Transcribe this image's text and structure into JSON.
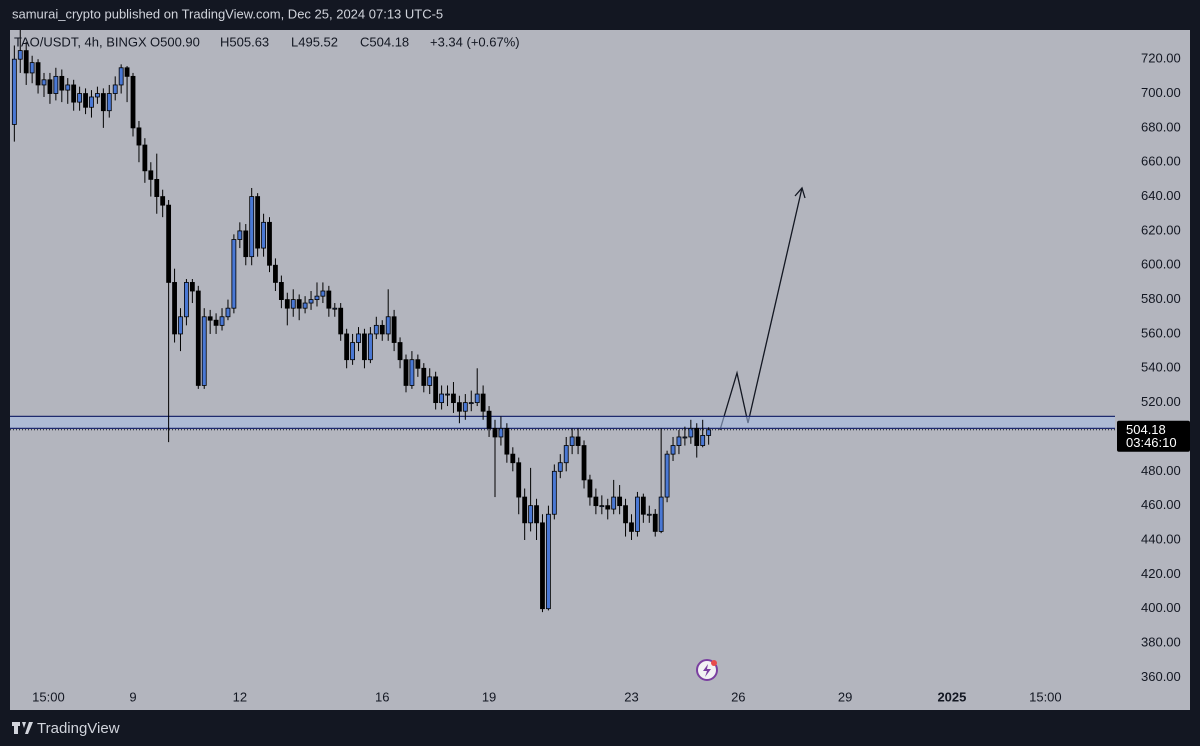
{
  "header": {
    "text": "samurai_crypto published on TradingView.com, Dec 25, 2024 07:13 UTC-5"
  },
  "footer": {
    "brand": "TradingView"
  },
  "chart_data": {
    "type": "candlestick",
    "legend": {
      "symbol": "TAO/USDT, 4h, BINGX",
      "open": "O500.90",
      "high": "H505.63",
      "low": "L495.52",
      "close": "C504.18",
      "change": "+3.34 (+0.67%)"
    },
    "countdown": "03:46:10",
    "up_color": "#4a78d4",
    "down_color": "#000000",
    "zone": [
      505,
      512
    ],
    "xlim": [
      5.545,
      36.58
    ],
    "xticks": [
      {
        "value": 6.625,
        "label": "15:00"
      },
      9,
      12,
      16,
      19,
      23,
      26,
      29,
      {
        "value": 32,
        "label": "2025"
      },
      {
        "value": 34.625,
        "label": "15:00"
      }
    ],
    "ylim": [
      341,
      737
    ],
    "yticks": [
      {
        "value": 360,
        "label": "360.00"
      },
      {
        "value": 380,
        "label": "380.00"
      },
      {
        "value": 400,
        "label": "400.00"
      },
      {
        "value": 420,
        "label": "420.00"
      },
      {
        "value": 440,
        "label": "440.00"
      },
      {
        "value": 460,
        "label": "460.00"
      },
      {
        "value": 480,
        "label": "480.00"
      },
      {
        "value": 500,
        "label": "500.00"
      },
      {
        "value": 520,
        "label": "520.00"
      },
      {
        "value": 540,
        "label": "540.00"
      },
      {
        "value": 560,
        "label": "560.00"
      },
      {
        "value": 580,
        "label": "580.00"
      },
      {
        "value": 600,
        "label": "600.00"
      },
      {
        "value": 620,
        "label": "620.00"
      },
      {
        "value": 640,
        "label": "640.00"
      },
      {
        "value": 660,
        "label": "660.00"
      },
      {
        "value": 680,
        "label": "680.00"
      },
      {
        "value": 700,
        "label": "700.00"
      },
      {
        "value": 720,
        "label": "720.00"
      }
    ],
    "x": [
      5.667,
      5.833,
      6,
      6.167,
      6.333,
      6.5,
      6.667,
      6.833,
      7,
      7.167,
      7.333,
      7.5,
      7.667,
      7.833,
      8,
      8.167,
      8.333,
      8.5,
      8.667,
      8.833,
      9,
      9.167,
      9.333,
      9.5,
      9.667,
      9.833,
      10,
      10.167,
      10.333,
      10.5,
      10.667,
      10.833,
      11,
      11.167,
      11.333,
      11.5,
      11.667,
      11.833,
      12,
      12.167,
      12.333,
      12.5,
      12.667,
      12.833,
      13,
      13.167,
      13.333,
      13.5,
      13.667,
      13.833,
      14,
      14.167,
      14.333,
      14.5,
      14.667,
      14.833,
      15,
      15.167,
      15.333,
      15.5,
      15.667,
      15.833,
      16,
      16.167,
      16.333,
      16.5,
      16.667,
      16.833,
      17,
      17.167,
      17.333,
      17.5,
      17.667,
      17.833,
      18,
      18.167,
      18.333,
      18.5,
      18.667,
      18.833,
      19,
      19.167,
      19.333,
      19.5,
      19.667,
      19.833,
      20,
      20.167,
      20.333,
      20.5,
      20.667,
      20.833,
      21,
      21.167,
      21.333,
      21.5,
      21.667,
      21.833,
      22,
      22.167,
      22.333,
      22.5,
      22.667,
      22.833,
      23,
      23.167,
      23.333,
      23.5,
      23.667,
      23.833,
      24,
      24.167,
      24.333,
      24.5,
      24.667,
      24.833,
      25,
      25.167
    ],
    "open": [
      682,
      720,
      725,
      712,
      718,
      705,
      708,
      700,
      710,
      702,
      705,
      695,
      700,
      692,
      698,
      700,
      690,
      700,
      705,
      715,
      710,
      680,
      670,
      655,
      650,
      640,
      635,
      590,
      560,
      570,
      590,
      585,
      530,
      570,
      568,
      565,
      570,
      575,
      615,
      620,
      605,
      640,
      610,
      625,
      600,
      590,
      580,
      575,
      580,
      575,
      578,
      580,
      582,
      585,
      575,
      575,
      560,
      545,
      555,
      560,
      545,
      560,
      565,
      560,
      570,
      555,
      545,
      530,
      545,
      540,
      530,
      535,
      520,
      525,
      525,
      520,
      515,
      520,
      520,
      525,
      515,
      505,
      500,
      505,
      490,
      485,
      465,
      450,
      460,
      450,
      400,
      455,
      480,
      485,
      495,
      500,
      495,
      475,
      465,
      460,
      460,
      458,
      465,
      460,
      450,
      445,
      465,
      455,
      455,
      445,
      465,
      490,
      495,
      500,
      500,
      505,
      495,
      500.9
    ],
    "high": [
      728,
      737,
      730,
      722,
      720,
      712,
      712,
      715,
      714,
      709,
      708,
      704,
      703,
      702,
      704,
      703,
      705,
      710,
      717,
      716,
      712,
      684,
      674,
      660,
      665,
      644,
      638,
      598,
      575,
      592,
      592,
      588,
      575,
      574,
      572,
      575,
      580,
      618,
      625,
      624,
      645,
      642,
      630,
      628,
      604,
      594,
      584,
      586,
      583,
      582,
      585,
      590,
      590,
      588,
      578,
      578,
      563,
      560,
      564,
      563,
      564,
      570,
      568,
      586,
      574,
      558,
      548,
      550,
      548,
      543,
      540,
      538,
      530,
      530,
      532,
      524,
      525,
      527,
      540,
      530,
      518,
      510,
      512,
      508,
      494,
      488,
      470,
      482,
      464,
      455,
      460,
      484,
      490,
      500,
      505,
      505,
      498,
      478,
      470,
      466,
      464,
      475,
      472,
      464,
      455,
      468,
      467,
      460,
      458,
      505,
      492,
      500,
      504,
      506,
      510,
      508,
      510,
      505.63
    ],
    "low": [
      672,
      712,
      705,
      706,
      700,
      698,
      694,
      696,
      695,
      694,
      690,
      690,
      688,
      686,
      694,
      680,
      686,
      696,
      700,
      695,
      675,
      660,
      648,
      640,
      630,
      628,
      497,
      555,
      550,
      565,
      578,
      528,
      528,
      560,
      560,
      562,
      568,
      572,
      610,
      600,
      600,
      605,
      605,
      596,
      585,
      575,
      565,
      570,
      568,
      572,
      574,
      576,
      578,
      570,
      570,
      556,
      540,
      542,
      550,
      540,
      543,
      557,
      556,
      556,
      550,
      540,
      526,
      528,
      535,
      526,
      525,
      516,
      516,
      518,
      514,
      508,
      510,
      515,
      518,
      510,
      500,
      465,
      495,
      485,
      480,
      455,
      440,
      445,
      440,
      398,
      399,
      452,
      476,
      480,
      490,
      490,
      470,
      460,
      455,
      455,
      452,
      455,
      455,
      442,
      440,
      442,
      450,
      450,
      442,
      444,
      462,
      486,
      490,
      495,
      496,
      488,
      494,
      495.52
    ],
    "close": [
      720,
      725,
      712,
      718,
      705,
      708,
      700,
      710,
      702,
      705,
      695,
      700,
      692,
      698,
      700,
      690,
      700,
      705,
      715,
      710,
      680,
      670,
      655,
      650,
      640,
      635,
      590,
      560,
      570,
      590,
      585,
      530,
      570,
      568,
      565,
      570,
      575,
      615,
      620,
      605,
      640,
      610,
      625,
      600,
      590,
      580,
      575,
      580,
      575,
      578,
      580,
      582,
      585,
      575,
      575,
      560,
      545,
      555,
      560,
      545,
      560,
      565,
      560,
      570,
      555,
      545,
      530,
      545,
      540,
      530,
      535,
      520,
      525,
      525,
      520,
      515,
      520,
      520,
      525,
      515,
      505,
      500,
      505,
      490,
      485,
      465,
      450,
      460,
      450,
      400,
      455,
      480,
      485,
      495,
      500,
      495,
      475,
      465,
      460,
      460,
      458,
      465,
      460,
      450,
      445,
      465,
      455,
      455,
      445,
      465,
      490,
      495,
      500,
      500,
      505,
      495,
      500.9,
      504.18
    ]
  }
}
